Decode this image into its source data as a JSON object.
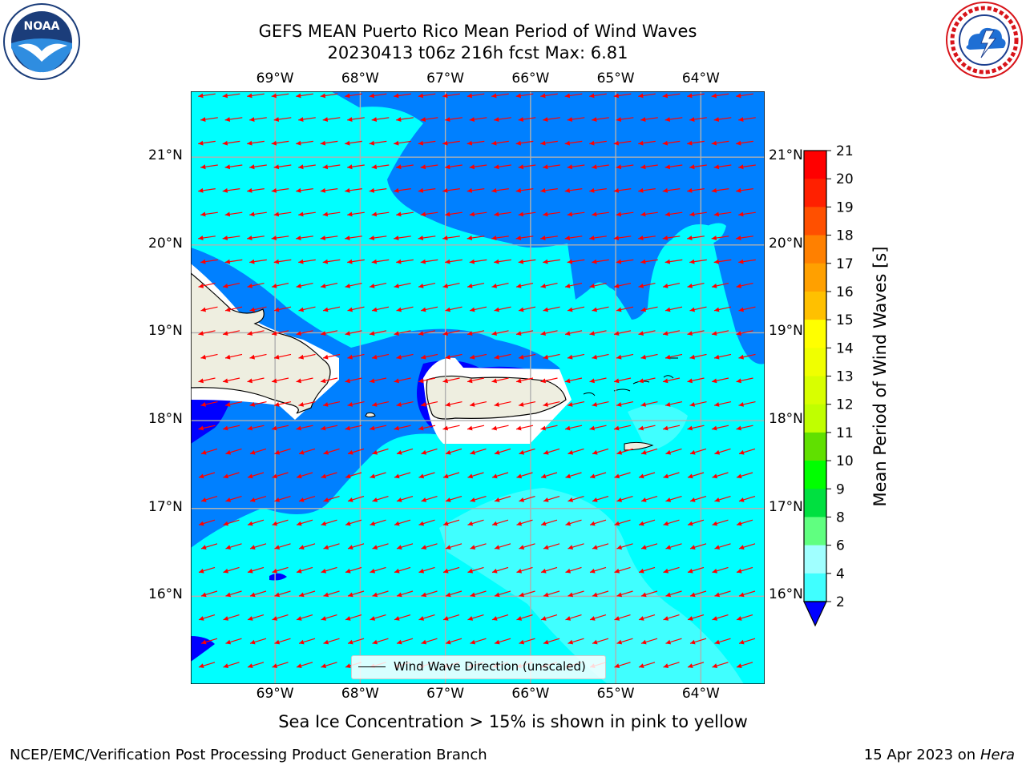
{
  "title": {
    "line1": "GEFS MEAN Puerto Rico Mean Period of Wind Waves",
    "line2": "20230413 t06z 216h fcst   Max: 6.81"
  },
  "logos": {
    "left": "noaa-logo",
    "right": "nws-logo",
    "left_text": "NOAA",
    "left_ring_text": "NATIONAL OCEANIC AND ATMOSPHERIC ADMINISTRATION · U.S. DEPARTMENT OF COMMERCE",
    "right_ring_text": "NATIONAL WEATHER SERVICE"
  },
  "map": {
    "lon_labels": [
      "69°W",
      "68°W",
      "67°W",
      "66°W",
      "65°W",
      "64°W"
    ],
    "lat_labels": [
      "21°N",
      "20°N",
      "19°N",
      "18°N",
      "17°N",
      "16°N"
    ],
    "lon_values": [
      -69,
      -68,
      -67,
      -66,
      -65,
      -64
    ],
    "lat_values": [
      21,
      20,
      19,
      18,
      17,
      16
    ],
    "extent": {
      "lon_min": -69.99,
      "lon_max": -63.25,
      "lat_min": 15.0,
      "lat_max": 21.75
    },
    "legend_label": "Wind Wave Direction (unscaled)",
    "arrow_color": "#ff0000",
    "colors": {
      "band_2_4": "#0080ff",
      "band_below_2": "#0000ff",
      "band_4_6": "#00ffff",
      "band_6_8": "#40ffff",
      "land": "#eeeee0",
      "grid": "#b0b0b0"
    }
  },
  "colorbar": {
    "label": "Mean Period of Wind Waves [s]",
    "ticks": [
      "21",
      "20",
      "19",
      "18",
      "17",
      "16",
      "15",
      "14",
      "13",
      "12",
      "11",
      "10",
      "9",
      "8",
      "6",
      "4",
      "2"
    ],
    "colors": [
      "#ff0000",
      "#ff2000",
      "#ff5000",
      "#ff8000",
      "#ffa000",
      "#ffc000",
      "#ffff00",
      "#f0ff00",
      "#d8ff00",
      "#c0ff00",
      "#60e000",
      "#00ff00",
      "#00e040",
      "#60ff80",
      "#a0ffff",
      "#40ffff",
      "#00ffff",
      "#0080ff"
    ],
    "extend_color": "#0000ff"
  },
  "chart_data": {
    "type": "heatmap",
    "title": "GEFS MEAN Puerto Rico Mean Period of Wind Waves",
    "subtitle": "20230413 t06z 216h fcst   Max: 6.81",
    "colorbar_label": "Mean Period of Wind Waves [s]",
    "levels": [
      2,
      4,
      6,
      8,
      9,
      10,
      11,
      12,
      13,
      14,
      15,
      16,
      17,
      18,
      19,
      20,
      21
    ],
    "max_value": 6.81,
    "xlim": [
      -69.99,
      -63.25
    ],
    "ylim": [
      15.0,
      21.75
    ],
    "vector_field": "Wind Wave Direction (unscaled)",
    "dominant_direction": "toward southwest"
  },
  "footer": {
    "note": "Sea Ice Concentration > 15% is shown in pink to yellow",
    "left": "NCEP/EMC/Verification Post Processing Product Generation Branch",
    "right_date": "15 Apr 2023 on ",
    "right_machine": "Hera"
  }
}
